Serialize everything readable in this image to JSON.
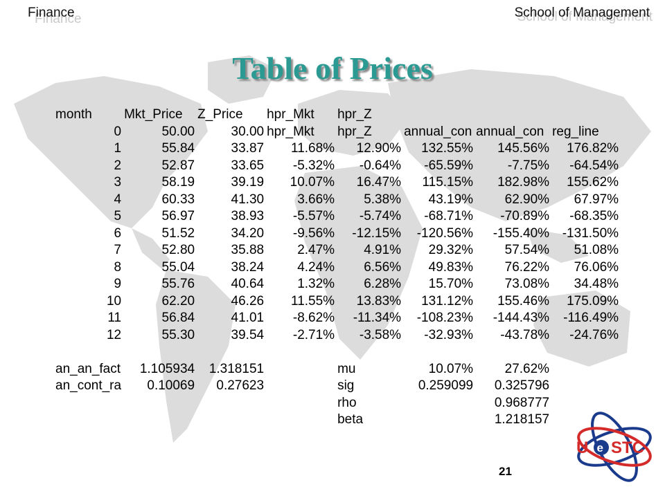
{
  "header": {
    "left": "Finance",
    "right": "School of Management"
  },
  "title": "Table of Prices",
  "table": {
    "headers": [
      "month",
      "Mkt_Price",
      "Z_Price",
      "hpr_Mkt",
      "hpr_Z",
      "",
      "",
      ""
    ],
    "rows": [
      [
        "0",
        "50.00",
        "30.00",
        "hpr_Mkt",
        "hpr_Z",
        "annual_con",
        "annual_con",
        "reg_line"
      ],
      [
        "1",
        "55.84",
        "33.87",
        "11.68%",
        "12.90%",
        "132.55%",
        "145.56%",
        "176.82%"
      ],
      [
        "2",
        "52.87",
        "33.65",
        "-5.32%",
        "-0.64%",
        "-65.59%",
        "-7.75%",
        "-64.54%"
      ],
      [
        "3",
        "58.19",
        "39.19",
        "10.07%",
        "16.47%",
        "115.15%",
        "182.98%",
        "155.62%"
      ],
      [
        "4",
        "60.33",
        "41.30",
        "3.66%",
        "5.38%",
        "43.19%",
        "62.90%",
        "67.97%"
      ],
      [
        "5",
        "56.97",
        "38.93",
        "-5.57%",
        "-5.74%",
        "-68.71%",
        "-70.89%",
        "-68.35%"
      ],
      [
        "6",
        "51.52",
        "34.20",
        "-9.56%",
        "-12.15%",
        "-120.56%",
        "-155.40%",
        "-131.50%"
      ],
      [
        "7",
        "52.80",
        "35.88",
        "2.47%",
        "4.91%",
        "29.32%",
        "57.54%",
        "51.08%"
      ],
      [
        "8",
        "55.04",
        "38.24",
        "4.24%",
        "6.56%",
        "49.83%",
        "76.22%",
        "76.06%"
      ],
      [
        "9",
        "55.76",
        "40.64",
        "1.32%",
        "6.28%",
        "15.70%",
        "73.08%",
        "34.48%"
      ],
      [
        "10",
        "62.20",
        "46.26",
        "11.55%",
        "13.83%",
        "131.12%",
        "155.46%",
        "175.09%"
      ],
      [
        "11",
        "56.84",
        "41.01",
        "-8.62%",
        "-11.34%",
        "-108.23%",
        "-144.43%",
        "-116.49%"
      ],
      [
        "12",
        "55.30",
        "39.54",
        "-2.71%",
        "-3.58%",
        "-32.93%",
        "-43.78%",
        "-24.76%"
      ]
    ],
    "summary": [
      [
        "an_an_fact",
        "1.105934",
        "1.318151",
        "",
        "mu",
        "10.07%",
        "27.62%",
        ""
      ],
      [
        "an_cont_ra",
        "0.10069",
        "0.27623",
        "",
        "sig",
        "0.259099",
        "0.325796",
        ""
      ],
      [
        "",
        "",
        "",
        "",
        "rho",
        "",
        "0.968777",
        ""
      ],
      [
        "",
        "",
        "",
        "",
        "beta",
        "",
        "1.218157",
        ""
      ]
    ]
  },
  "page_number": "21",
  "logo": {
    "text_left": "U",
    "text_mid": "e",
    "text_right": "STC"
  },
  "colors": {
    "title": "#2a9a92",
    "map": "#d8d8d8",
    "logo_red": "#d42a2a",
    "logo_blue": "#1a3b8c"
  }
}
